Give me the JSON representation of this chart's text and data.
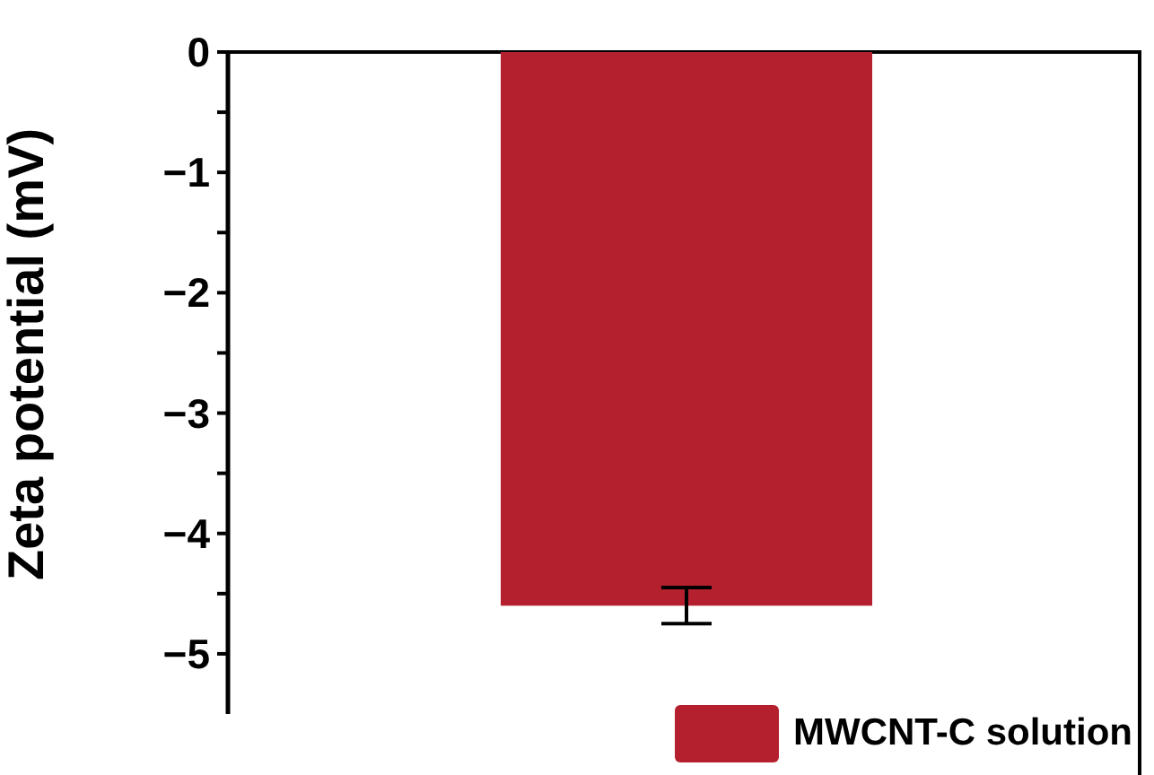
{
  "chart_data": {
    "type": "bar",
    "ylabel": "Zeta potential (mV)",
    "categories": [
      null
    ],
    "series": [
      {
        "name": "MWCNT-C solution",
        "color": "#b5202e",
        "values": [
          -4.6
        ],
        "errors": [
          0.15
        ]
      }
    ],
    "ylim": [
      -5.5,
      0
    ],
    "yticks": [
      {
        "value": 0,
        "label": "0"
      },
      {
        "value": -0.5,
        "label": null
      },
      {
        "value": -1,
        "label": "−1"
      },
      {
        "value": -1.5,
        "label": null
      },
      {
        "value": -2,
        "label": "−2"
      },
      {
        "value": -2.5,
        "label": null
      },
      {
        "value": -3,
        "label": "−3"
      },
      {
        "value": -3.5,
        "label": null
      },
      {
        "value": -4,
        "label": "−4"
      },
      {
        "value": -4.5,
        "label": null
      },
      {
        "value": -5,
        "label": "−5"
      }
    ],
    "legend": "bottom right"
  }
}
